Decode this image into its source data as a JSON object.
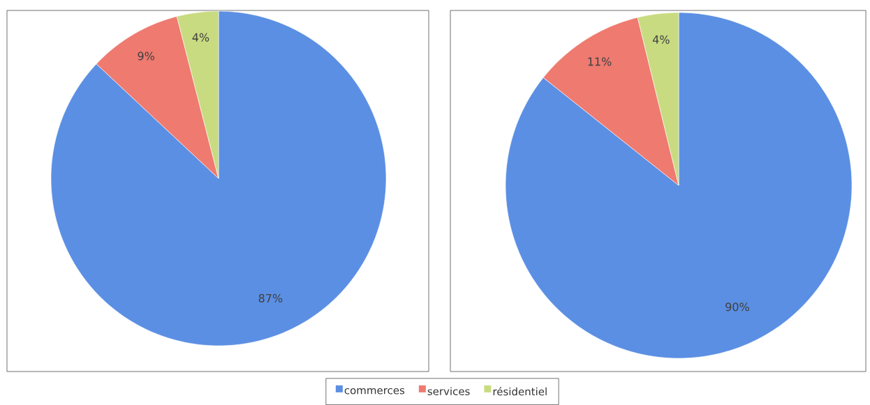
{
  "chart_data": [
    {
      "type": "pie",
      "categories": [
        "commerces",
        "services",
        "résidentiel"
      ],
      "values": [
        87,
        9,
        4
      ],
      "colors": [
        "#5b8fe3",
        "#ee7a70",
        "#c8db80"
      ],
      "value_labels": [
        "87%",
        "9%",
        "4%"
      ],
      "legend": "bottom"
    },
    {
      "type": "pie",
      "values": [
        90,
        11,
        4
      ],
      "colors": [
        "#5b8fe3",
        "#ee7a70",
        "#c8db80"
      ],
      "value_labels": [
        "90%",
        "11%",
        "4%"
      ]
    }
  ]
}
